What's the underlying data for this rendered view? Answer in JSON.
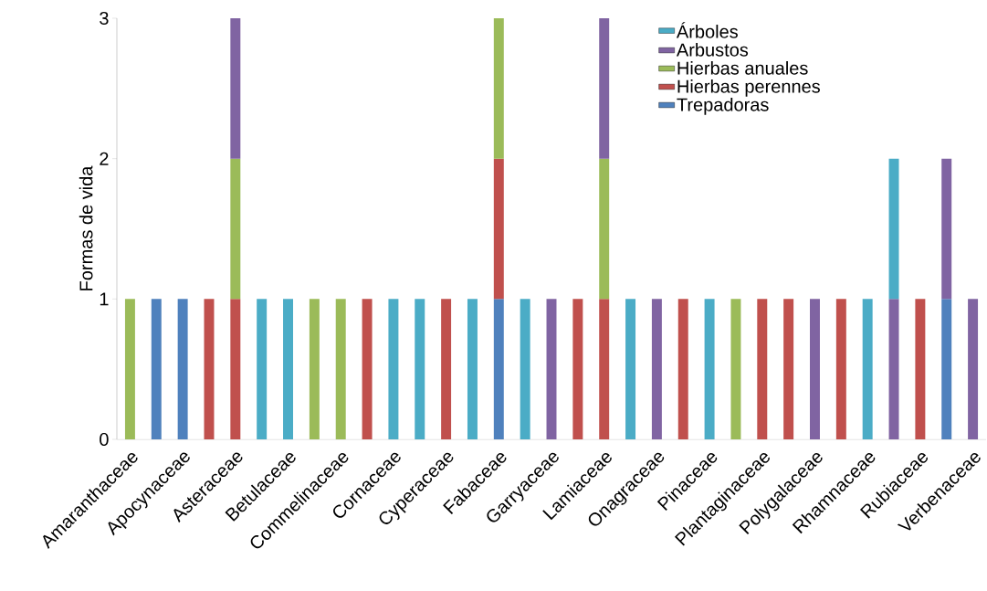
{
  "chart_data": {
    "type": "bar",
    "stacked": true,
    "ylabel": "Formas de vida",
    "categories": [
      "Amaranthaceae",
      null,
      "Apocynaceae",
      null,
      "Asteraceae",
      null,
      "Betulaceae",
      null,
      "Commelinaceae",
      null,
      "Cornaceae",
      null,
      "Cyperaceae",
      null,
      "Fabaceae",
      null,
      "Garryaceae",
      null,
      "Lamiaceae",
      null,
      "Onagraceae",
      null,
      "Pinaceae",
      null,
      "Plantaginaceae",
      null,
      "Polygalaceae",
      null,
      "Rhamnaceae",
      null,
      "Rubiaceae",
      null,
      "Verbenaceae"
    ],
    "series": [
      {
        "name": "Trepadoras",
        "color": "#4f81bd",
        "values": [
          null,
          1,
          1,
          null,
          null,
          null,
          null,
          null,
          null,
          null,
          null,
          null,
          null,
          null,
          1,
          null,
          null,
          null,
          null,
          null,
          null,
          null,
          null,
          null,
          null,
          null,
          null,
          null,
          null,
          null,
          null,
          1,
          null
        ]
      },
      {
        "name": "Hierbas perennes",
        "color": "#c0504d",
        "values": [
          null,
          null,
          null,
          1,
          1,
          null,
          null,
          null,
          null,
          1,
          null,
          null,
          1,
          null,
          1,
          null,
          null,
          1,
          1,
          null,
          null,
          1,
          null,
          null,
          1,
          1,
          null,
          1,
          null,
          null,
          1,
          null,
          null
        ]
      },
      {
        "name": "Hierbas anuales",
        "color": "#9bbb59",
        "values": [
          1,
          null,
          null,
          null,
          1,
          null,
          null,
          1,
          1,
          null,
          null,
          null,
          null,
          null,
          1,
          null,
          null,
          null,
          1,
          null,
          null,
          null,
          null,
          1,
          null,
          null,
          null,
          null,
          null,
          null,
          null,
          null,
          null
        ]
      },
      {
        "name": "Arbustos",
        "color": "#8064a2",
        "values": [
          null,
          null,
          null,
          null,
          1,
          null,
          null,
          null,
          null,
          null,
          null,
          null,
          null,
          null,
          null,
          null,
          1,
          null,
          1,
          null,
          1,
          null,
          null,
          null,
          null,
          null,
          1,
          null,
          null,
          1,
          null,
          1,
          1
        ]
      },
      {
        "name": "Árboles",
        "color": "#4bacc6",
        "values": [
          null,
          null,
          null,
          null,
          null,
          1,
          1,
          null,
          null,
          null,
          1,
          1,
          null,
          1,
          null,
          1,
          null,
          null,
          null,
          1,
          null,
          null,
          1,
          null,
          null,
          null,
          null,
          null,
          1,
          1,
          null,
          null,
          null
        ]
      }
    ],
    "ylim": [
      0,
      3
    ],
    "yticks": [
      0,
      1,
      2,
      3
    ],
    "legend": "top right"
  }
}
